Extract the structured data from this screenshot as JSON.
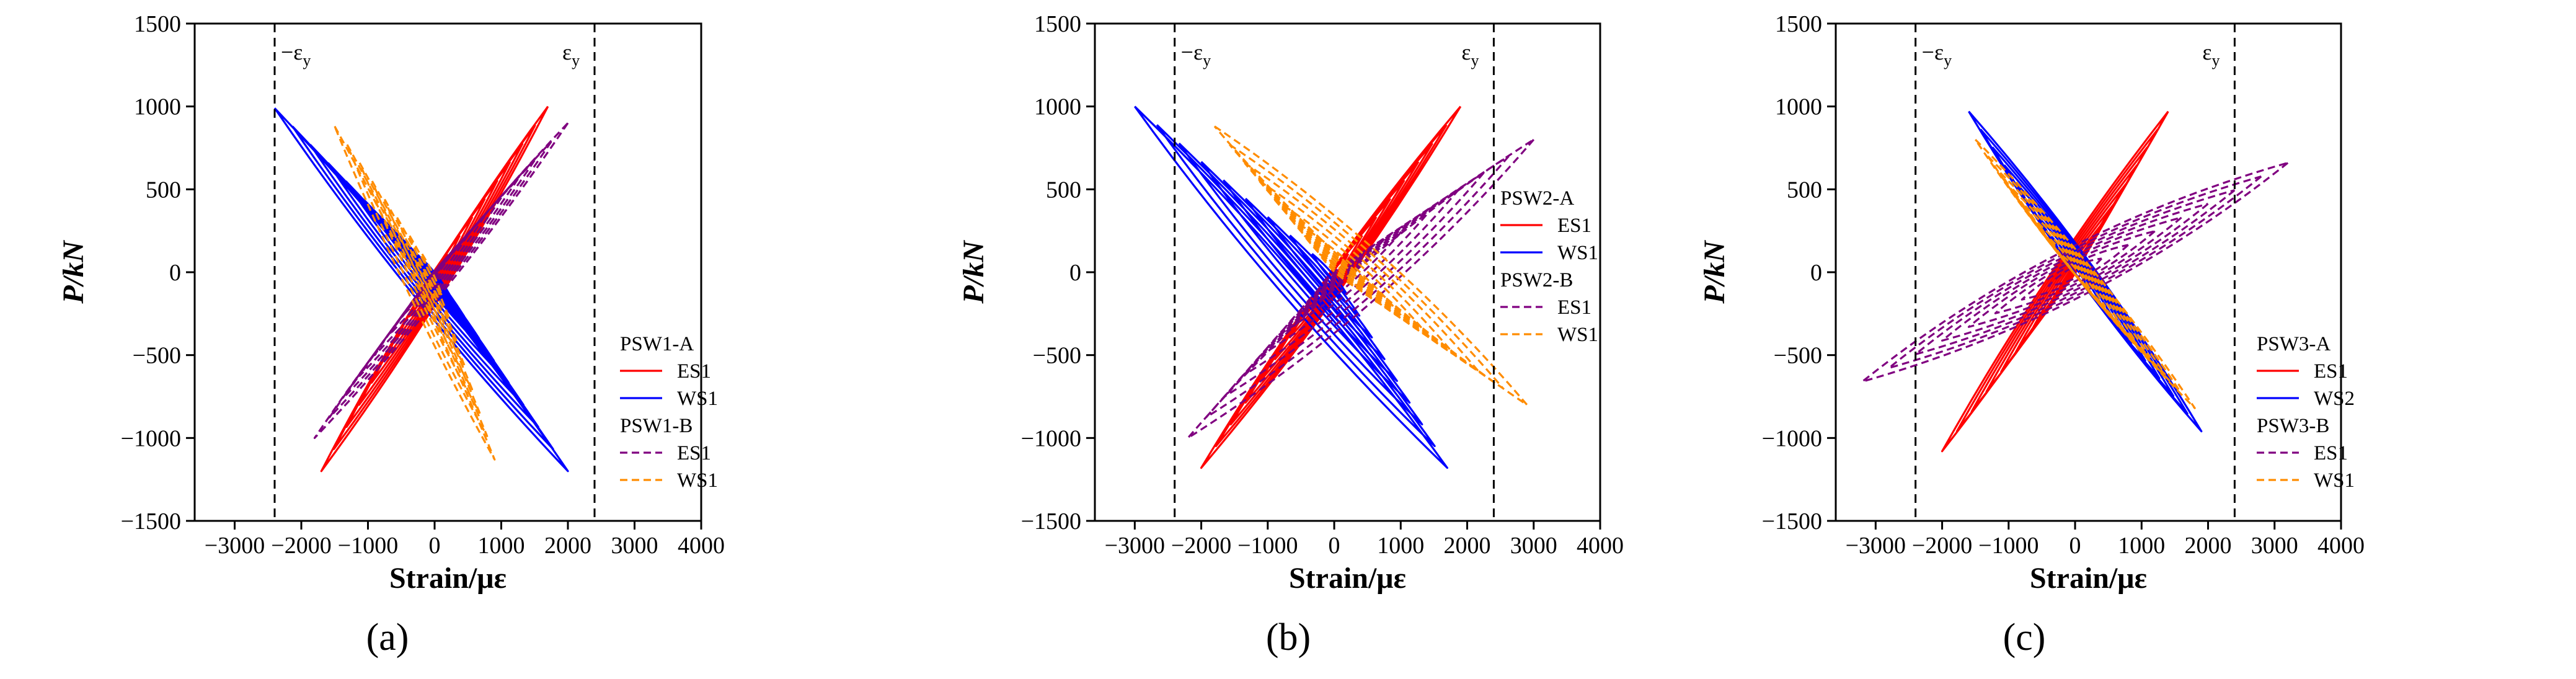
{
  "figure": {
    "panel_labels": [
      "(a)",
      "(b)",
      "(c)"
    ],
    "italic_parens": [
      "(",
      ")"
    ],
    "panel_letters": [
      "a",
      "b",
      "c"
    ]
  },
  "chart_data": [
    {
      "type": "line",
      "panel": "(a)",
      "xlabel": "Strain/με",
      "ylabel": "P/kN",
      "xlim": [
        -3600,
        4000
      ],
      "ylim": [
        -1500,
        1500
      ],
      "xticks": [
        -3000,
        -2000,
        -1000,
        0,
        1000,
        2000,
        3000,
        4000
      ],
      "yticks": [
        -1500,
        -1000,
        -500,
        0,
        500,
        1000,
        1500
      ],
      "yield_lines": [
        {
          "label": "−εy",
          "base": "−ε",
          "sub": "y",
          "x": -2400
        },
        {
          "label": "εy",
          "base": "ε",
          "sub": "y",
          "x": 2400
        }
      ],
      "legend": {
        "groups": [
          {
            "title": "PSW1-A",
            "entries": [
              {
                "name": "ES1",
                "color": "#ff0000",
                "style": "solid"
              },
              {
                "name": "WS1",
                "color": "#0000ff",
                "style": "solid"
              }
            ]
          },
          {
            "title": "PSW1-B",
            "entries": [
              {
                "name": "ES1",
                "color": "#800080",
                "style": "dashed"
              },
              {
                "name": "WS1",
                "color": "#ff8c00",
                "style": "dashed"
              }
            ]
          }
        ]
      },
      "series": [
        {
          "name": "PSW1-A ES1",
          "color": "#ff0000",
          "style": "solid",
          "peak_pos": [
            1700,
            1000
          ],
          "peak_neg": [
            -1700,
            -1200
          ],
          "min_width": 60,
          "max_width": 450,
          "cycles": 9
        },
        {
          "name": "PSW1-A WS1",
          "color": "#0000ff",
          "style": "solid",
          "peak_pos": [
            -2400,
            990
          ],
          "peak_neg": [
            2000,
            -1200
          ],
          "min_width": 60,
          "max_width": 450,
          "cycles": 9
        },
        {
          "name": "PSW1-B ES1",
          "color": "#800080",
          "style": "dashed",
          "peak_pos": [
            2000,
            900
          ],
          "peak_neg": [
            -1800,
            -1000
          ],
          "min_width": 60,
          "max_width": 400,
          "cycles": 8
        },
        {
          "name": "PSW1-B WS1",
          "color": "#ff8c00",
          "style": "dashed",
          "peak_pos": [
            -1500,
            880
          ],
          "peak_neg": [
            900,
            -1130
          ],
          "min_width": 40,
          "max_width": 300,
          "cycles": 8
        }
      ]
    },
    {
      "type": "line",
      "panel": "(b)",
      "xlabel": "Strain/με",
      "ylabel": "P/kN",
      "xlim": [
        -3600,
        4000
      ],
      "ylim": [
        -1500,
        1500
      ],
      "xticks": [
        -3000,
        -2000,
        -1000,
        0,
        1000,
        2000,
        3000,
        4000
      ],
      "yticks": [
        -1500,
        -1000,
        -500,
        0,
        500,
        1000,
        1500
      ],
      "yield_lines": [
        {
          "label": "−εy",
          "base": "−ε",
          "sub": "y",
          "x": -2400
        },
        {
          "label": "εy",
          "base": "ε",
          "sub": "y",
          "x": 2400
        }
      ],
      "legend": {
        "groups": [
          {
            "title": "PSW2-A",
            "entries": [
              {
                "name": "ES1",
                "color": "#ff0000",
                "style": "solid"
              },
              {
                "name": "WS1",
                "color": "#0000ff",
                "style": "solid"
              }
            ]
          },
          {
            "title": "PSW2-B",
            "entries": [
              {
                "name": "ES1",
                "color": "#800080",
                "style": "dashed"
              },
              {
                "name": "WS1",
                "color": "#ff8c00",
                "style": "dashed"
              }
            ]
          }
        ]
      },
      "series": [
        {
          "name": "PSW2-A ES1",
          "color": "#ff0000",
          "style": "solid",
          "peak_pos": [
            1900,
            1000
          ],
          "peak_neg": [
            -2000,
            -1180
          ],
          "min_width": 60,
          "max_width": 450,
          "cycles": 9
        },
        {
          "name": "PSW2-A WS1",
          "color": "#0000ff",
          "style": "solid",
          "peak_pos": [
            -3000,
            1000
          ],
          "peak_neg": [
            1700,
            -1180
          ],
          "min_width": 60,
          "max_width": 500,
          "cycles": 9
        },
        {
          "name": "PSW2-B ES1",
          "color": "#800080",
          "style": "dashed",
          "peak_pos": [
            3000,
            800
          ],
          "peak_neg": [
            -2200,
            -1000
          ],
          "min_width": 80,
          "max_width": 700,
          "cycles": 8
        },
        {
          "name": "PSW2-B WS1",
          "color": "#ff8c00",
          "style": "dashed",
          "peak_pos": [
            -1800,
            880
          ],
          "peak_neg": [
            2900,
            -800
          ],
          "min_width": 60,
          "max_width": 600,
          "cycles": 8
        }
      ]
    },
    {
      "type": "line",
      "panel": "(c)",
      "xlabel": "Strain/με",
      "ylabel": "P/kN",
      "xlim": [
        -3600,
        4000
      ],
      "ylim": [
        -1500,
        1500
      ],
      "xticks": [
        -3000,
        -2000,
        -1000,
        0,
        1000,
        2000,
        3000,
        4000
      ],
      "yticks": [
        -1500,
        -1000,
        -500,
        0,
        500,
        1000,
        1500
      ],
      "yield_lines": [
        {
          "label": "−εy",
          "base": "−ε",
          "sub": "y",
          "x": -2400
        },
        {
          "label": "εy",
          "base": "ε",
          "sub": "y",
          "x": 2400
        }
      ],
      "legend": {
        "groups": [
          {
            "title": "PSW3-A",
            "entries": [
              {
                "name": "ES1",
                "color": "#ff0000",
                "style": "solid"
              },
              {
                "name": "WS2",
                "color": "#0000ff",
                "style": "solid"
              }
            ]
          },
          {
            "title": "PSW3-B",
            "entries": [
              {
                "name": "ES1",
                "color": "#800080",
                "style": "dashed"
              },
              {
                "name": "WS1",
                "color": "#ff8c00",
                "style": "dashed"
              }
            ]
          }
        ]
      },
      "series": [
        {
          "name": "PSW3-A ES1",
          "color": "#ff0000",
          "style": "solid",
          "peak_pos": [
            1400,
            970
          ],
          "peak_neg": [
            -2000,
            -1080
          ],
          "min_width": 60,
          "max_width": 400,
          "cycles": 9
        },
        {
          "name": "PSW3-A WS2",
          "color": "#0000ff",
          "style": "solid",
          "peak_pos": [
            -1600,
            970
          ],
          "peak_neg": [
            1900,
            -960
          ],
          "min_width": 60,
          "max_width": 450,
          "cycles": 9
        },
        {
          "name": "PSW3-B ES1",
          "color": "#800080",
          "style": "dashed",
          "peak_pos": [
            3200,
            660
          ],
          "peak_neg": [
            -3200,
            -660
          ],
          "min_width": 80,
          "max_width": 700,
          "cycles": 8
        },
        {
          "name": "PSW3-B WS1",
          "color": "#ff8c00",
          "style": "dashed",
          "peak_pos": [
            -1500,
            800
          ],
          "peak_neg": [
            1800,
            -820
          ],
          "min_width": 50,
          "max_width": 400,
          "cycles": 8
        }
      ]
    }
  ]
}
